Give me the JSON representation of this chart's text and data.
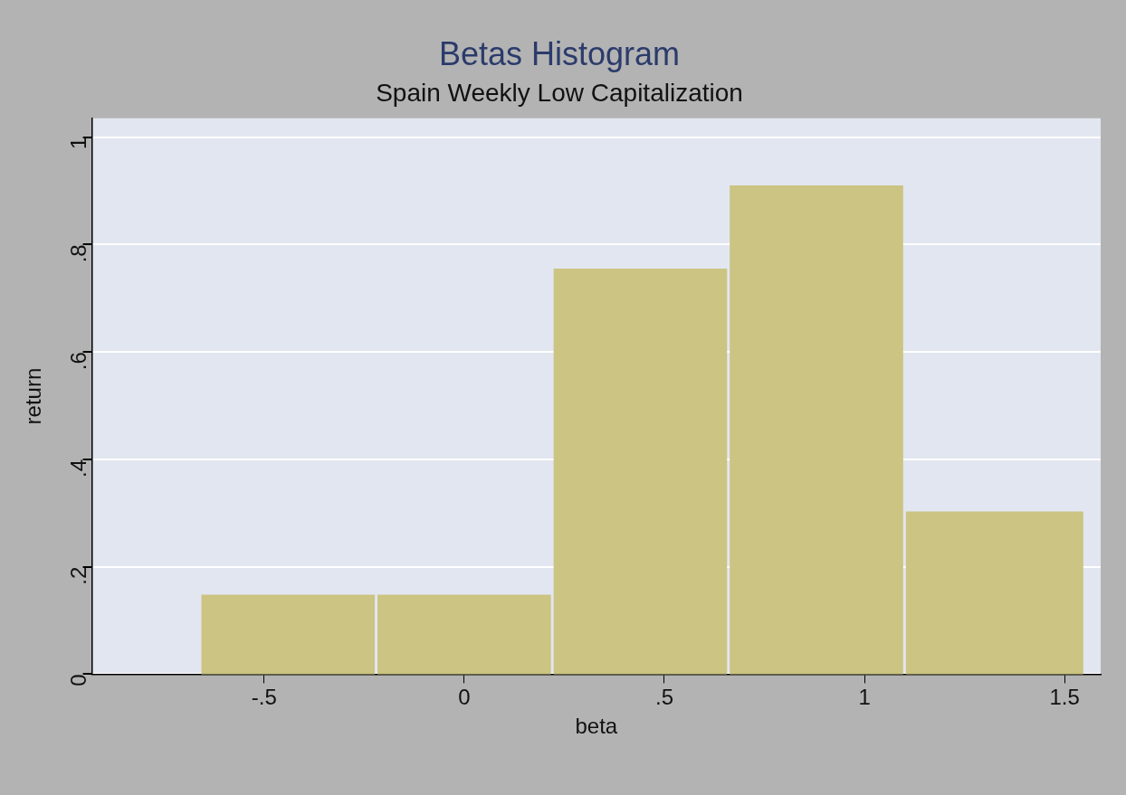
{
  "chart_data": {
    "type": "histogram",
    "title": "Betas Histogram",
    "subtitle": "Spain Weekly Low Capitalization",
    "xlabel": "beta",
    "ylabel": "return",
    "bins": [
      -0.66,
      -0.22,
      0.22,
      0.66,
      1.1,
      1.55
    ],
    "values": [
      0.148,
      0.148,
      0.755,
      0.91,
      0.303
    ],
    "color": "#cbc482",
    "xlim": [
      -0.93,
      1.59
    ],
    "ylim": [
      0,
      1.035
    ],
    "xticks": [
      {
        "value": -0.5,
        "label": "-.5"
      },
      0,
      {
        "value": 0.5,
        "label": ".5"
      },
      1,
      1.5
    ],
    "yticks": [
      0,
      {
        "value": 0.2,
        "label": ".2"
      },
      {
        "value": 0.4,
        "label": ".4"
      },
      {
        "value": 0.6,
        "label": ".6"
      },
      {
        "value": 0.8,
        "label": ".8"
      },
      1
    ],
    "grid": "y",
    "legend": false
  }
}
